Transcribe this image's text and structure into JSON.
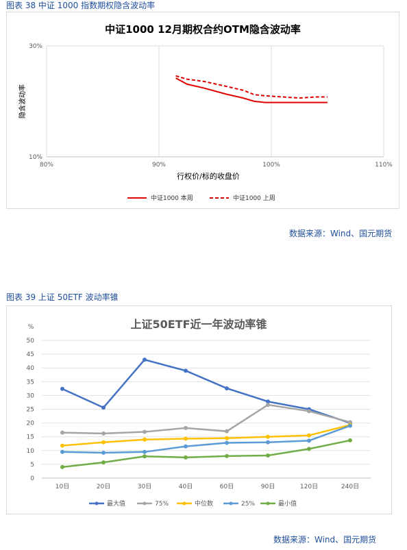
{
  "figure1": {
    "caption": "图表 38  中证 1000 指数期权隐含波动率",
    "source": "数据来源：Wind、国元期货"
  },
  "figure2": {
    "caption": "图表 39  上证 50ETF 波动率锥",
    "source": "数据来源：Wind、国元期货"
  },
  "chart_data": [
    {
      "type": "line",
      "title": "中证1000  12月期权合约OTM隐含波动率",
      "xlabel": "行权价/标的收盘价",
      "ylabel": "隐含波动率",
      "xlim": [
        80,
        110
      ],
      "ylim": [
        10,
        30
      ],
      "x_ticks": [
        "80%",
        "90%",
        "100%",
        "110%"
      ],
      "y_ticks": [
        "10%",
        "30%"
      ],
      "grid": "vertical and horizontal",
      "legend": "bottom",
      "series": [
        {
          "name": "中证1000  本周",
          "color": "#e00000",
          "dash": false,
          "x": [
            91.5,
            92.5,
            94,
            96,
            97.5,
            98.5,
            99.5,
            101,
            102.5,
            104,
            105
          ],
          "y": [
            24.2,
            23.1,
            22.4,
            21.3,
            20.6,
            20.0,
            19.8,
            19.8,
            19.8,
            19.8,
            19.8
          ]
        },
        {
          "name": "中证1000  上周",
          "color": "#e00000",
          "dash": true,
          "x": [
            91.5,
            92.5,
            94,
            96,
            97.5,
            98.5,
            99.5,
            101,
            102.5,
            104,
            105
          ],
          "y": [
            24.6,
            24.0,
            23.6,
            22.7,
            22.0,
            21.2,
            21.0,
            20.8,
            20.6,
            20.8,
            20.8
          ]
        }
      ]
    },
    {
      "type": "line",
      "title": "上证50ETF近一年波动率锥",
      "ylabel": "%",
      "xlabel": "",
      "categories": [
        "10日",
        "20日",
        "30日",
        "40日",
        "60日",
        "90日",
        "120日",
        "240日"
      ],
      "ylim": [
        0,
        50
      ],
      "y_ticks": [
        "0",
        "5",
        "10",
        "15",
        "20",
        "25",
        "30",
        "35",
        "40",
        "45",
        "50"
      ],
      "grid": "horizontal",
      "legend": "bottom",
      "series": [
        {
          "name": "最大值",
          "color": "#4472c4",
          "values": [
            32.4,
            25.6,
            43.0,
            39.0,
            32.6,
            27.8,
            25.0,
            20.0
          ]
        },
        {
          "name": "75%",
          "color": "#a5a5a5",
          "values": [
            16.5,
            16.2,
            16.8,
            18.2,
            17.0,
            26.6,
            24.3,
            20.3
          ]
        },
        {
          "name": "中位数",
          "color": "#ffc000",
          "values": [
            11.8,
            13.0,
            14.0,
            14.3,
            14.5,
            15.0,
            15.5,
            19.3
          ]
        },
        {
          "name": "25%",
          "color": "#5b9bd5",
          "values": [
            9.5,
            9.2,
            9.5,
            11.5,
            12.8,
            13.0,
            13.6,
            19.0
          ]
        },
        {
          "name": "最小值",
          "color": "#70ad47",
          "values": [
            4.0,
            5.7,
            7.9,
            7.5,
            8.0,
            8.2,
            10.6,
            13.7
          ]
        }
      ]
    }
  ]
}
